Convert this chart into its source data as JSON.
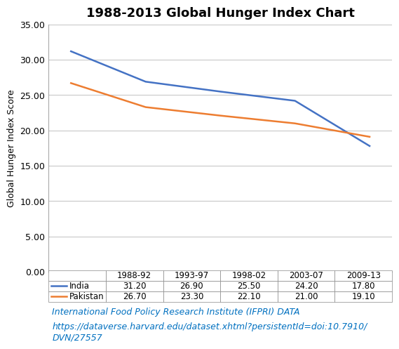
{
  "title": "1988-2013 Global Hunger Index Chart",
  "ylabel": "Global Hunger Index Score",
  "categories": [
    "1988-92",
    "1993-97",
    "1998-02",
    "2003-07",
    "2009-13"
  ],
  "india_values": [
    31.2,
    26.9,
    25.5,
    24.2,
    17.8
  ],
  "pakistan_values": [
    26.7,
    23.3,
    22.1,
    21.0,
    19.1
  ],
  "india_color": "#4472C4",
  "pakistan_color": "#ED7D31",
  "ylim": [
    0,
    35
  ],
  "yticks": [
    0.0,
    5.0,
    10.0,
    15.0,
    20.0,
    25.0,
    30.0,
    35.0
  ],
  "background_color": "#FFFFFF",
  "plot_bg_color": "#FFFFFF",
  "grid_color": "#C8C8C8",
  "source_text": "International Food Policy Research Institute (IFPRI) DATA",
  "url_text": "https://dataverse.harvard.edu/dataset.xhtml?persistentId=doi:10.7910/\nDVN/27557",
  "source_color": "#0070C0",
  "title_fontsize": 13,
  "label_fontsize": 9,
  "tick_fontsize": 9,
  "table_fontsize": 8.5,
  "source_fontsize": 9
}
